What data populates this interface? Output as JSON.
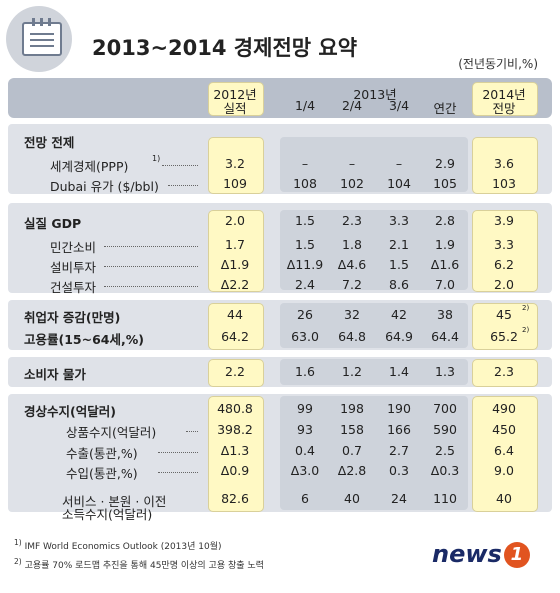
{
  "title": "2013~2014 경제전망 요약",
  "unit": "(전년동기비,%)",
  "columns": {
    "c2012": [
      "2012년",
      "실적"
    ],
    "c2013": "2013년",
    "quarters": [
      "1/4",
      "2/4",
      "3/4",
      "연간"
    ],
    "c2014": [
      "2014년",
      "전망"
    ]
  },
  "sections": {
    "outlook": "전망 전제",
    "gdp": "실질 GDP",
    "employment": "취업자 증감(만명)",
    "employment_rate": "고용률(15~64세,%)",
    "cpi": "소비자 물가",
    "current_account": "경상수지(억달러)"
  },
  "rows": [
    {
      "label": "세계경제(PPP)",
      "sup": "1)",
      "v2012": "3.2",
      "q": [
        "–",
        "–",
        "–",
        "2.9"
      ],
      "v2014": "3.6"
    },
    {
      "label": "Dubai 유가 ($/bbl)",
      "v2012": "109",
      "q": [
        "108",
        "102",
        "104",
        "105"
      ],
      "v2014": "103"
    },
    {
      "label": "",
      "v2012": "2.0",
      "q": [
        "1.5",
        "2.3",
        "3.3",
        "2.8"
      ],
      "v2014": "3.9"
    },
    {
      "label": "민간소비",
      "v2012": "1.7",
      "q": [
        "1.5",
        "1.8",
        "2.1",
        "1.9"
      ],
      "v2014": "3.3"
    },
    {
      "label": "설비투자",
      "v2012": "Δ1.9",
      "q": [
        "Δ11.9",
        "Δ4.6",
        "1.5",
        "Δ1.6"
      ],
      "v2014": "6.2"
    },
    {
      "label": "건설투자",
      "v2012": "Δ2.2",
      "q": [
        "2.4",
        "7.2",
        "8.6",
        "7.0"
      ],
      "v2014": "2.0"
    },
    {
      "label": "",
      "v2012": "44",
      "q": [
        "26",
        "32",
        "42",
        "38"
      ],
      "v2014": "45",
      "sup14": "2)"
    },
    {
      "label": "",
      "v2012": "64.2",
      "q": [
        "63.0",
        "64.8",
        "64.9",
        "64.4"
      ],
      "v2014": "65.2",
      "sup14": "2)"
    },
    {
      "label": "",
      "v2012": "2.2",
      "q": [
        "1.6",
        "1.2",
        "1.4",
        "1.3"
      ],
      "v2014": "2.3"
    },
    {
      "label": "",
      "v2012": "480.8",
      "q": [
        "99",
        "198",
        "190",
        "700"
      ],
      "v2014": "490"
    },
    {
      "label": "상품수지(억달러)",
      "v2012": "398.2",
      "q": [
        "93",
        "158",
        "166",
        "590"
      ],
      "v2014": "450"
    },
    {
      "label": "수출(통관,%)",
      "v2012": "Δ1.3",
      "q": [
        "0.4",
        "0.7",
        "2.7",
        "2.5"
      ],
      "v2014": "6.4"
    },
    {
      "label": "수입(통관,%)",
      "v2012": "Δ0.9",
      "q": [
        "Δ3.0",
        "Δ2.8",
        "0.3",
        "Δ0.3"
      ],
      "v2014": "9.0"
    },
    {
      "label": "서비스 · 본원 · 이전",
      "label2": "소득수지(억달러)",
      "v2012": "82.6",
      "q": [
        "6",
        "40",
        "24",
        "110"
      ],
      "v2014": "40"
    }
  ],
  "footnotes": [
    {
      "mark": "1)",
      "text": "IMF World Economics Outlook (2013년 10월)"
    },
    {
      "mark": "2)",
      "text": "고용률 70% 로드맵 추진을 통해 45만명 이상의 고용 창출 노력"
    }
  ],
  "logo": {
    "text": "news",
    "one": "1"
  }
}
